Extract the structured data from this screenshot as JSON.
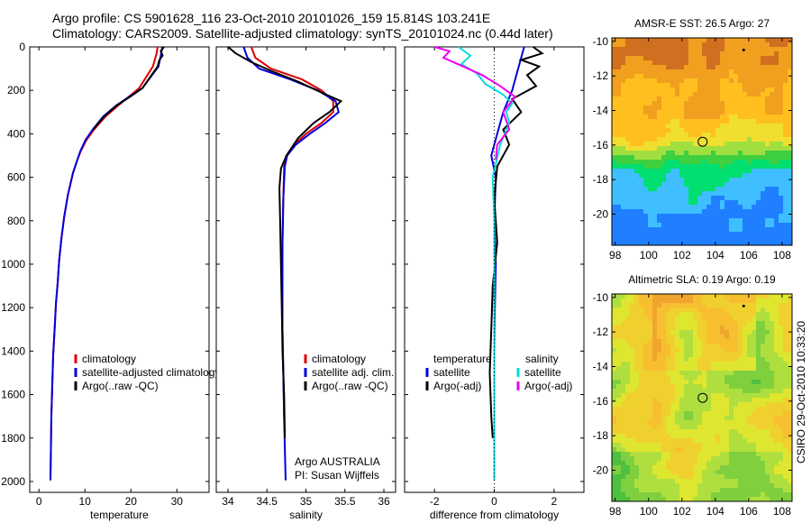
{
  "header": {
    "line1": "Argo profile: CS 5901628_116 23-Oct-2010 20101026_159 15.814S 103.241E",
    "line2": "Climatology: CARS2009. Satellite-adjusted climatology: synTS_20101024.nc (0.44d later)"
  },
  "side_label": "CSIRO 29-Oct-2010 10:33:20",
  "chart_data": [
    {
      "type": "line",
      "id": "temperature",
      "xlabel": "temperature",
      "ylabel": "",
      "xlim": [
        -2,
        37
      ],
      "ylim": [
        2050,
        0
      ],
      "xticks": [
        0,
        10,
        20,
        30
      ],
      "yticks": [
        0,
        200,
        400,
        600,
        800,
        1000,
        1200,
        1400,
        1600,
        1800,
        2000
      ],
      "legend": [
        "climatology",
        "satellite-adjusted climatology",
        "Argo(..raw -QC)"
      ],
      "series": [
        {
          "name": "climatology",
          "color": "#dd0000",
          "x": [
            25.8,
            25.6,
            24.8,
            21.8,
            19.5,
            17.2,
            14.5,
            12.0,
            10.3,
            9.1,
            8.2,
            7.4,
            6.3,
            5.5,
            4.9,
            4.4,
            4.1,
            3.7,
            3.4,
            3.1,
            2.9,
            2.7,
            2.6,
            2.5
          ],
          "y": [
            0,
            30,
            90,
            190,
            230,
            270,
            320,
            380,
            430,
            480,
            530,
            580,
            680,
            780,
            880,
            980,
            1080,
            1180,
            1300,
            1420,
            1560,
            1700,
            1850,
            1995
          ]
        },
        {
          "name": "satellite-adjusted climatology",
          "color": "#0000dd",
          "x": [
            26.8,
            26.6,
            26.0,
            22.5,
            19.6,
            16.8,
            14.0,
            11.7,
            10.1,
            9.0,
            8.2,
            7.4,
            6.3,
            5.5,
            4.9,
            4.4,
            4.1,
            3.7,
            3.4,
            3.1,
            2.9,
            2.7,
            2.6,
            2.5
          ],
          "y": [
            0,
            30,
            90,
            190,
            230,
            270,
            320,
            380,
            430,
            480,
            530,
            580,
            680,
            780,
            880,
            980,
            1080,
            1180,
            1300,
            1420,
            1560,
            1700,
            1850,
            1995
          ]
        },
        {
          "name": "Argo(..raw -QC)",
          "color": "#000000",
          "x": [
            27.2,
            26.5,
            26.9,
            26.2,
            25.8,
            22.5,
            19.8,
            16.9,
            14.2,
            11.8
          ],
          "y": [
            0,
            20,
            40,
            60,
            90,
            190,
            230,
            270,
            320,
            380
          ]
        }
      ]
    },
    {
      "type": "line",
      "id": "salinity",
      "xlabel": "salinity",
      "xlim": [
        33.85,
        36.15
      ],
      "ylim": [
        2050,
        0
      ],
      "xticks": [
        34,
        34.5,
        35,
        35.5,
        36
      ],
      "legend": [
        "climatology",
        "satellite adj. clim.",
        "Argo(..raw -QC)"
      ],
      "annotation": [
        "Argo AUSTRALIA",
        "PI: Susan Wijffels"
      ],
      "series": [
        {
          "name": "climatology",
          "color": "#dd0000",
          "x": [
            34.3,
            34.35,
            34.55,
            34.95,
            35.2,
            35.35,
            35.35,
            35.2,
            35.0,
            34.85,
            34.75,
            34.72,
            34.71,
            34.7,
            34.7,
            34.7,
            34.71,
            34.72,
            34.73
          ],
          "y": [
            0,
            50,
            100,
            150,
            200,
            250,
            300,
            350,
            400,
            450,
            500,
            550,
            700,
            900,
            1100,
            1300,
            1500,
            1700,
            1800
          ]
        },
        {
          "name": "satellite adj. clim.",
          "color": "#0000dd",
          "x": [
            34.2,
            34.25,
            34.4,
            34.8,
            35.15,
            35.38,
            35.42,
            35.25,
            35.05,
            34.87,
            34.76,
            34.73,
            34.71,
            34.7,
            34.7,
            34.7,
            34.71,
            34.72,
            34.73,
            34.74
          ],
          "y": [
            0,
            50,
            100,
            150,
            200,
            250,
            300,
            350,
            400,
            450,
            500,
            550,
            700,
            900,
            1100,
            1300,
            1500,
            1700,
            1850,
            1995
          ]
        },
        {
          "name": "Argo(..raw -QC)",
          "color": "#000000",
          "x": [
            34.0,
            34.1,
            34.3,
            34.55,
            34.9,
            35.2,
            35.45,
            35.3,
            35.1,
            34.9,
            34.75,
            34.68,
            34.66,
            34.67,
            34.68,
            34.69,
            34.7,
            34.72,
            34.73
          ],
          "y": [
            0,
            30,
            70,
            110,
            160,
            210,
            250,
            300,
            350,
            420,
            500,
            560,
            650,
            800,
            1000,
            1200,
            1400,
            1600,
            1800
          ]
        }
      ]
    },
    {
      "type": "line",
      "id": "difference",
      "xlabel": "difference from climatology",
      "xlim": [
        -3,
        3
      ],
      "ylim": [
        2050,
        0
      ],
      "xticks": [
        -2,
        0,
        2
      ],
      "legend_left_title": "temperature",
      "legend_right_title": "salinity",
      "legend": [
        "satellite",
        "Argo(-adj)",
        "satellite",
        "Argo(-adj)"
      ],
      "series": [
        {
          "name": "satellite",
          "color": "#0000dd",
          "x": [
            1.0,
            0.8,
            0.6,
            0.3,
            0.1,
            -0.1,
            0.05,
            0.0,
            0.05,
            0.02,
            0.0,
            0.0,
            0.0,
            0.0
          ],
          "y": [
            0,
            100,
            200,
            300,
            400,
            500,
            600,
            800,
            1000,
            1200,
            1400,
            1600,
            1800,
            1995
          ]
        },
        {
          "name": "Argo(-adj)",
          "color": "#000000",
          "x": [
            1.3,
            1.6,
            0.9,
            1.5,
            1.1,
            1.4,
            0.6,
            0.9,
            0.3,
            0.5,
            0.1,
            0.0,
            0.1,
            -0.05,
            -0.1,
            -0.15,
            -0.1,
            -0.05
          ],
          "y": [
            0,
            30,
            60,
            90,
            130,
            180,
            240,
            300,
            380,
            450,
            550,
            700,
            900,
            1100,
            1300,
            1500,
            1700,
            1800
          ]
        },
        {
          "name": "satellite",
          "color": "#00dddd",
          "x": [
            -1.2,
            -0.8,
            -1.1,
            -0.6,
            -0.3,
            0.3,
            0.6,
            0.4,
            0.5,
            0.2,
            -0.05,
            0.0,
            0.0,
            0.0,
            0.0
          ],
          "y": [
            0,
            40,
            80,
            120,
            170,
            220,
            260,
            300,
            350,
            450,
            600,
            800,
            1200,
            1600,
            1995
          ]
        },
        {
          "name": "Argo(-adj)",
          "color": "#ee00ee",
          "x": [
            -2.0,
            -1.5,
            -1.7,
            -1.2,
            -0.4,
            0.2,
            0.7,
            0.3,
            0.5,
            0.1,
            0.05
          ],
          "y": [
            0,
            20,
            50,
            80,
            130,
            180,
            230,
            300,
            380,
            450,
            520
          ]
        }
      ]
    },
    {
      "type": "heatmap",
      "id": "sst",
      "title": "AMSR-E SST: 26.5 Argo: 27",
      "xlim": [
        97.8,
        108.6
      ],
      "ylim": [
        -21.8,
        -9.8
      ],
      "xticks": [
        98,
        100,
        102,
        104,
        106,
        108
      ],
      "yticks": [
        -10,
        -12,
        -14,
        -16,
        -18,
        -20
      ],
      "marker": {
        "lon": 103.24,
        "lat": -15.81
      },
      "palette": [
        "#1f7fff",
        "#3fbfff",
        "#00df6f",
        "#3fcf3f",
        "#a0df3f",
        "#f0df2f",
        "#ffbf1f",
        "#f09f1f",
        "#d06f1f"
      ]
    },
    {
      "type": "heatmap",
      "id": "sla",
      "title": "Altimetric SLA: 0.19 Argo: 0.19",
      "xlim": [
        97.8,
        108.6
      ],
      "ylim": [
        -21.8,
        -9.8
      ],
      "xticks": [
        98,
        100,
        102,
        104,
        106,
        108
      ],
      "yticks": [
        -10,
        -12,
        -14,
        -16,
        -18,
        -20
      ],
      "marker": {
        "lon": 103.24,
        "lat": -15.81
      },
      "palette": [
        "#2faf4f",
        "#4fbf3f",
        "#7fcf3f",
        "#afdf3f",
        "#dfe62f",
        "#f0d02f",
        "#f7bf2f",
        "#f0a52f"
      ]
    }
  ]
}
